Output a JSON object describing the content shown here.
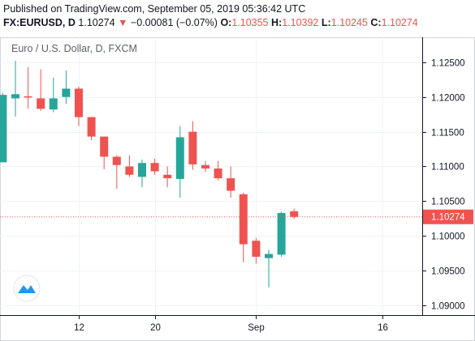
{
  "header": {
    "published": "Published on TradingView.com, September 05, 2019 05:36:42 UTC",
    "symbol": "FX:EURUSD, D",
    "last": "1.10274",
    "change_arrow": "▼",
    "change": "−0.00081 (−0.07%)",
    "o_label": "O:",
    "o_value": "1.10355",
    "h_label": "H:",
    "h_value": "1.10392",
    "l_label": "L:",
    "l_value": "1.10245",
    "c_label": "C:",
    "c_value": "1.10274"
  },
  "colors": {
    "up": "#26a69a",
    "down": "#ef5350",
    "axis": "#131722",
    "grid": "#f0f3fa"
  },
  "icons": {
    "logo": "tradingview-logo-icon"
  },
  "chart_data": {
    "type": "candlestick",
    "title": "Euro / U.S. Dollar, D, FXCM",
    "ylim": [
      1.0886,
      1.1286
    ],
    "price_ticks": [
      1.09,
      1.095,
      1.1,
      1.105,
      1.11,
      1.115,
      1.12,
      1.125
    ],
    "price_tick_labels": [
      "1.09000",
      "1.09500",
      "1.10000",
      "1.10500",
      "1.11000",
      "1.11500",
      "1.12000",
      "1.12500"
    ],
    "date_tick_labels": [
      {
        "label": "12",
        "index": 5
      },
      {
        "label": "20",
        "index": 11
      },
      {
        "label": "Sep",
        "index": 19
      },
      {
        "label": "16",
        "index": 29
      }
    ],
    "last_price": 1.10274,
    "last_price_label": "1.10274",
    "candles": [
      {
        "i": -1,
        "o": 1.1106,
        "h": 1.1206,
        "l": 1.1106,
        "c": 1.1203
      },
      {
        "i": 0,
        "o": 1.1198,
        "h": 1.1252,
        "l": 1.1172,
        "c": 1.1204
      },
      {
        "i": 1,
        "o": 1.1201,
        "h": 1.1243,
        "l": 1.1183,
        "c": 1.12
      },
      {
        "i": 2,
        "o": 1.1198,
        "h": 1.124,
        "l": 1.118,
        "c": 1.1183
      },
      {
        "i": 3,
        "o": 1.1182,
        "h": 1.1228,
        "l": 1.1178,
        "c": 1.1198
      },
      {
        "i": 4,
        "o": 1.12,
        "h": 1.1238,
        "l": 1.119,
        "c": 1.1212
      },
      {
        "i": 5,
        "o": 1.1212,
        "h": 1.1215,
        "l": 1.1158,
        "c": 1.1171
      },
      {
        "i": 6,
        "o": 1.1171,
        "h": 1.1171,
        "l": 1.1138,
        "c": 1.1143
      },
      {
        "i": 7,
        "o": 1.1143,
        "h": 1.1143,
        "l": 1.1096,
        "c": 1.1114
      },
      {
        "i": 8,
        "o": 1.1114,
        "h": 1.1116,
        "l": 1.1068,
        "c": 1.1102
      },
      {
        "i": 9,
        "o": 1.11,
        "h": 1.1116,
        "l": 1.1085,
        "c": 1.1088
      },
      {
        "i": 10,
        "o": 1.1085,
        "h": 1.111,
        "l": 1.107,
        "c": 1.1105
      },
      {
        "i": 11,
        "o": 1.1105,
        "h": 1.1111,
        "l": 1.1088,
        "c": 1.1093
      },
      {
        "i": 12,
        "o": 1.1088,
        "h": 1.11,
        "l": 1.107,
        "c": 1.1083
      },
      {
        "i": 13,
        "o": 1.1082,
        "h": 1.1158,
        "l": 1.1055,
        "c": 1.1142
      },
      {
        "i": 14,
        "o": 1.115,
        "h": 1.1165,
        "l": 1.1095,
        "c": 1.1103
      },
      {
        "i": 15,
        "o": 1.1102,
        "h": 1.1108,
        "l": 1.1092,
        "c": 1.1097
      },
      {
        "i": 16,
        "o": 1.1097,
        "h": 1.1108,
        "l": 1.108,
        "c": 1.1083
      },
      {
        "i": 17,
        "o": 1.1083,
        "h": 1.11,
        "l": 1.1055,
        "c": 1.1065
      },
      {
        "i": 18,
        "o": 1.106,
        "h": 1.1062,
        "l": 1.0962,
        "c": 1.0988
      },
      {
        "i": 19,
        "o": 1.0993,
        "h": 1.0997,
        "l": 1.096,
        "c": 1.097
      },
      {
        "i": 20,
        "o": 1.0968,
        "h": 1.098,
        "l": 1.0926,
        "c": 1.0974
      },
      {
        "i": 21,
        "o": 1.0973,
        "h": 1.1035,
        "l": 1.097,
        "c": 1.1033
      },
      {
        "i": 22,
        "o": 1.10355,
        "h": 1.10392,
        "l": 1.10245,
        "c": 1.10274
      }
    ]
  }
}
